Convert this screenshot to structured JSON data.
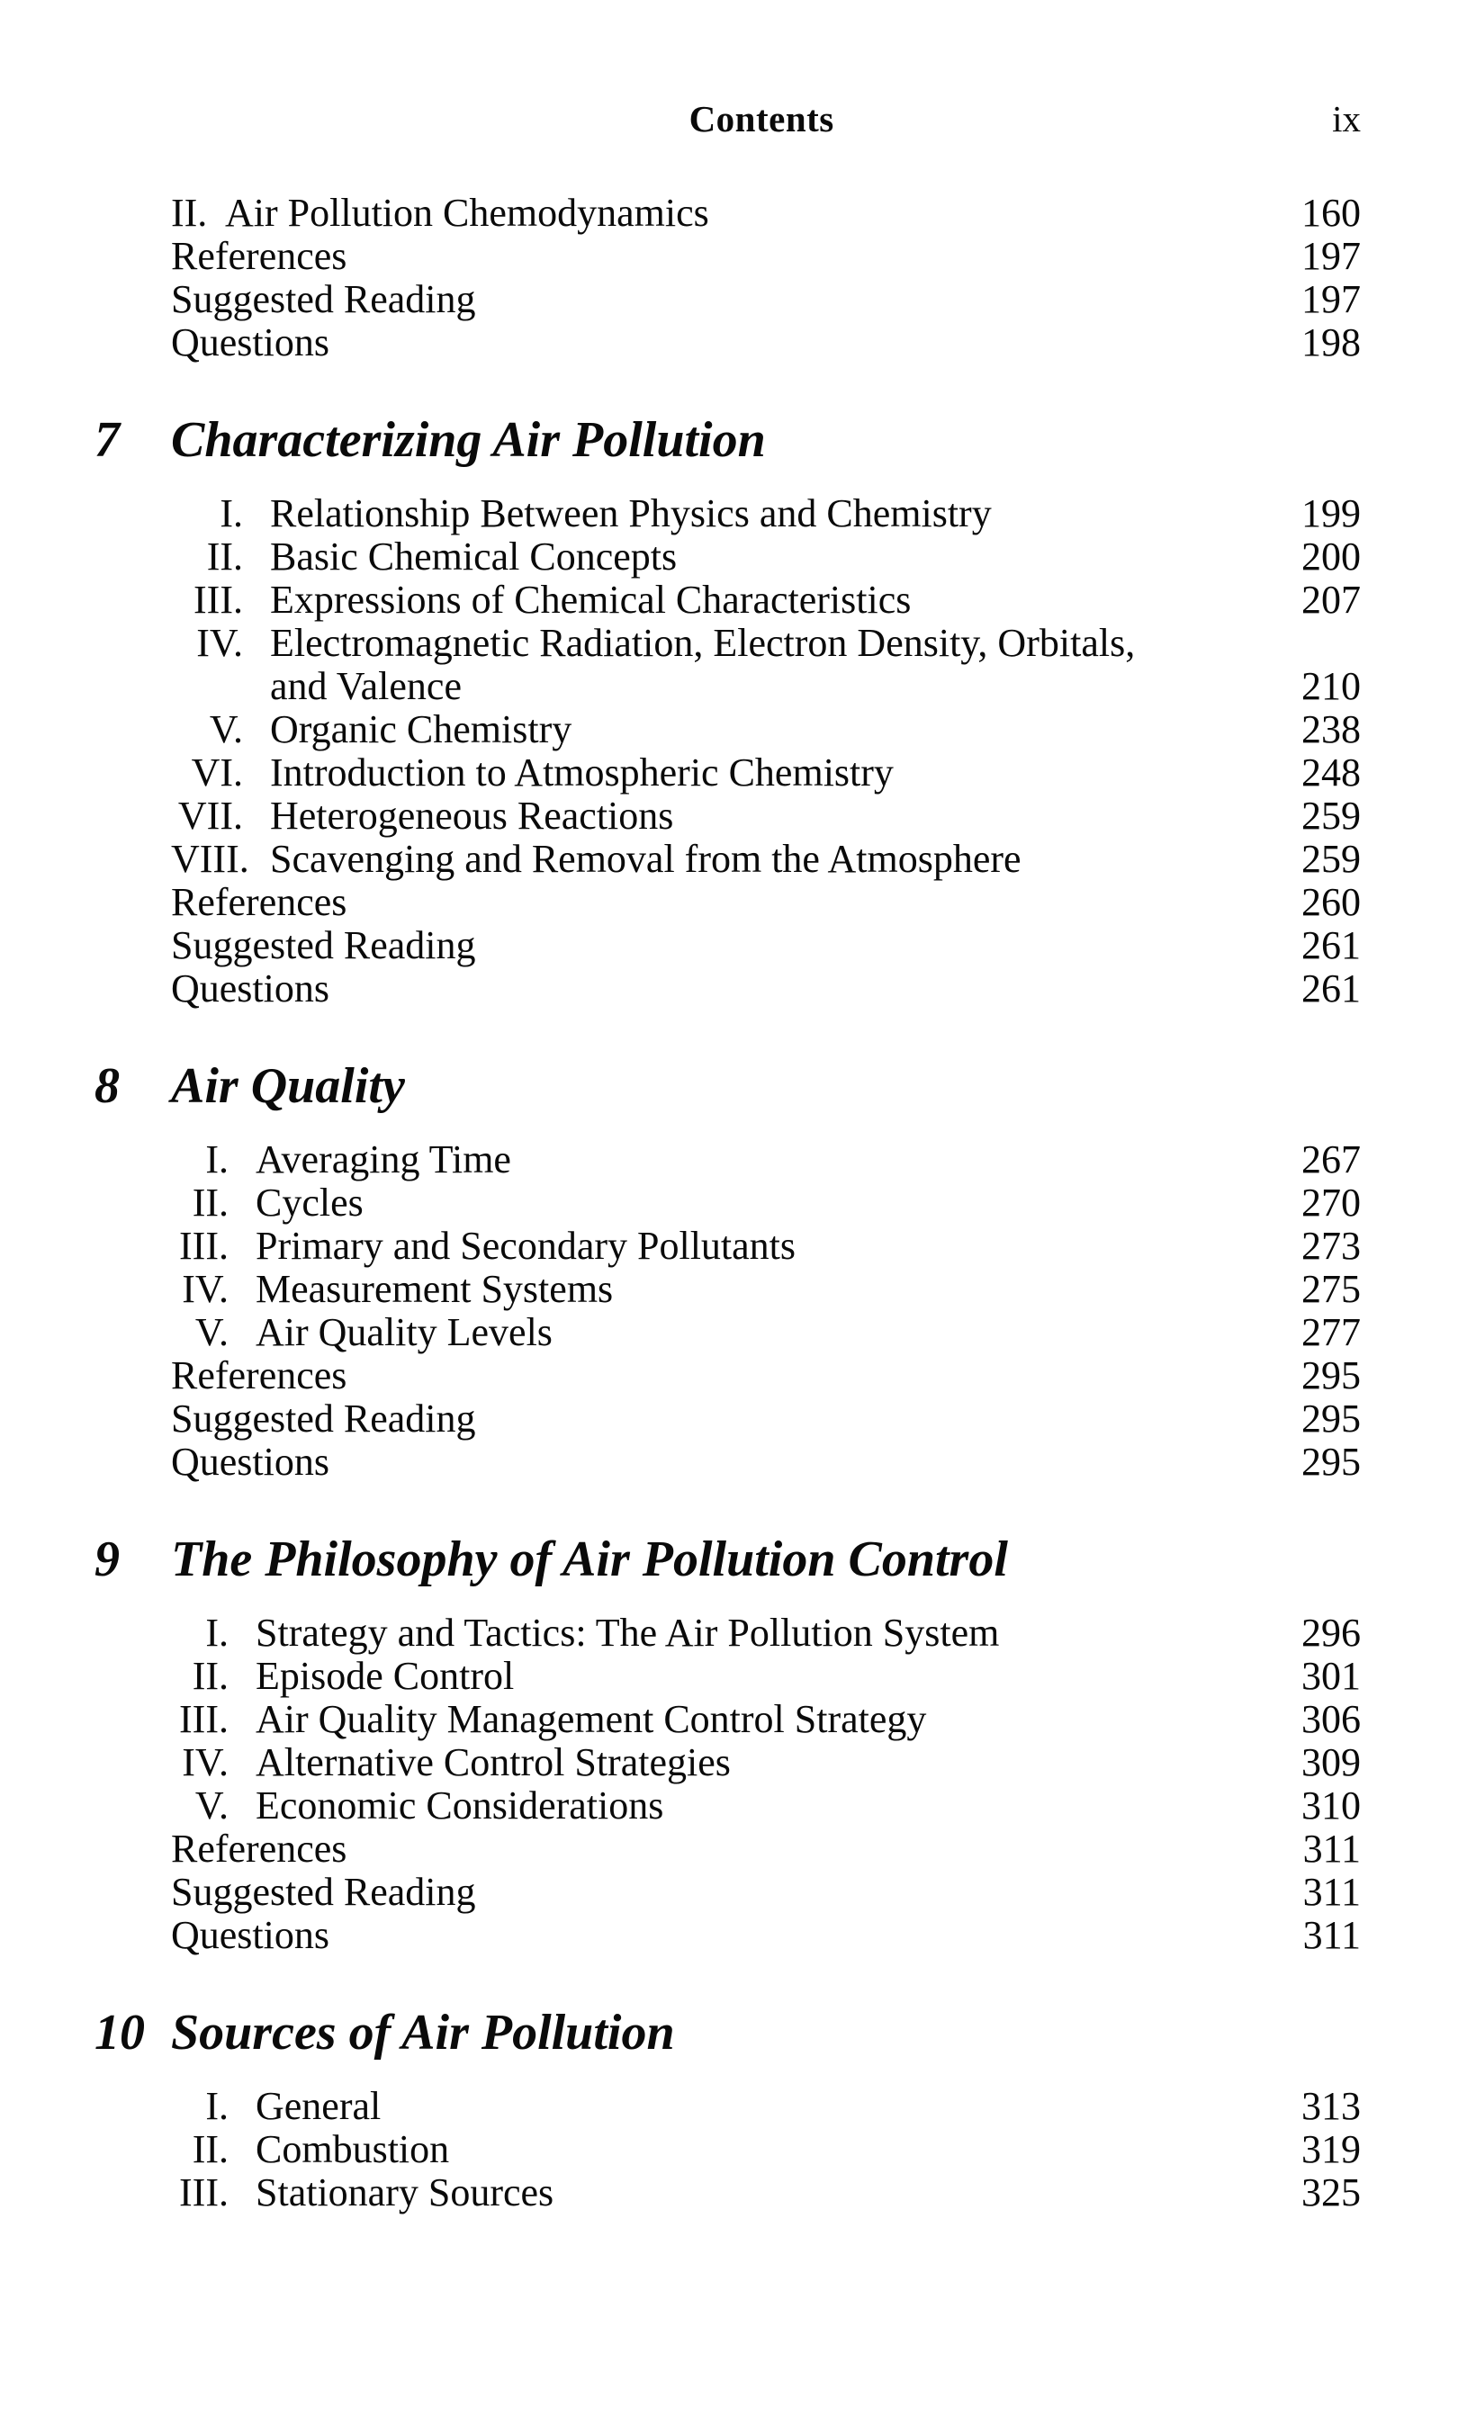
{
  "header": {
    "title": "Contents",
    "folio": "ix"
  },
  "sections": [
    {
      "rows": [
        {
          "num": "II.",
          "label": "Air Pollution Chemodynamics",
          "page": "160"
        },
        {
          "num": "",
          "label": "References",
          "page": "197"
        },
        {
          "num": "",
          "label": "Suggested Reading",
          "page": "197"
        },
        {
          "num": "",
          "label": "Questions",
          "page": "198"
        }
      ]
    },
    {
      "number": "7",
      "title": "Characterizing Air Pollution",
      "rows": [
        {
          "num": "I.",
          "label": "Relationship Between Physics and Chemistry",
          "page": "199"
        },
        {
          "num": "II.",
          "label": "Basic Chemical Concepts",
          "page": "200"
        },
        {
          "num": "III.",
          "label": "Expressions of Chemical Characteristics",
          "page": "207"
        },
        {
          "num": "IV.",
          "label": "Electromagnetic Radiation, Electron Density, Orbitals,",
          "page": ""
        },
        {
          "num": "",
          "label": "and Valence",
          "page": "210",
          "indent": true
        },
        {
          "num": "V.",
          "label": "Organic Chemistry",
          "page": "238"
        },
        {
          "num": "VI.",
          "label": "Introduction to Atmospheric Chemistry",
          "page": "248"
        },
        {
          "num": "VII.",
          "label": "Heterogeneous Reactions",
          "page": "259"
        },
        {
          "num": "VIII.",
          "label": "Scavenging and Removal from the Atmosphere",
          "page": "259"
        },
        {
          "num": "",
          "label": "References",
          "page": "260"
        },
        {
          "num": "",
          "label": "Suggested Reading",
          "page": "261"
        },
        {
          "num": "",
          "label": "Questions",
          "page": "261"
        }
      ]
    },
    {
      "number": "8",
      "title": "Air Quality",
      "rows": [
        {
          "num": "I.",
          "label": "Averaging Time",
          "page": "267"
        },
        {
          "num": "II.",
          "label": "Cycles",
          "page": "270"
        },
        {
          "num": "III.",
          "label": "Primary and Secondary Pollutants",
          "page": "273"
        },
        {
          "num": "IV.",
          "label": "Measurement Systems",
          "page": "275"
        },
        {
          "num": "V.",
          "label": "Air Quality Levels",
          "page": "277"
        },
        {
          "num": "",
          "label": "References",
          "page": "295"
        },
        {
          "num": "",
          "label": "Suggested Reading",
          "page": "295"
        },
        {
          "num": "",
          "label": "Questions",
          "page": "295"
        }
      ]
    },
    {
      "number": "9",
      "title": "The Philosophy of Air Pollution Control",
      "rows": [
        {
          "num": "I.",
          "label": "Strategy and Tactics: The Air Pollution System",
          "page": "296"
        },
        {
          "num": "II.",
          "label": "Episode Control",
          "page": "301"
        },
        {
          "num": "III.",
          "label": "Air Quality Management Control Strategy",
          "page": "306"
        },
        {
          "num": "IV.",
          "label": "Alternative Control Strategies",
          "page": "309"
        },
        {
          "num": "V.",
          "label": "Economic Considerations",
          "page": "310"
        },
        {
          "num": "",
          "label": "References",
          "page": "311"
        },
        {
          "num": "",
          "label": "Suggested Reading",
          "page": "311"
        },
        {
          "num": "",
          "label": "Questions",
          "page": "311"
        }
      ]
    },
    {
      "number": "10",
      "title": "Sources of Air Pollution",
      "rows": [
        {
          "num": "I.",
          "label": "General",
          "page": "313"
        },
        {
          "num": "II.",
          "label": "Combustion",
          "page": "319"
        },
        {
          "num": "III.",
          "label": "Stationary Sources",
          "page": "325"
        }
      ]
    }
  ]
}
